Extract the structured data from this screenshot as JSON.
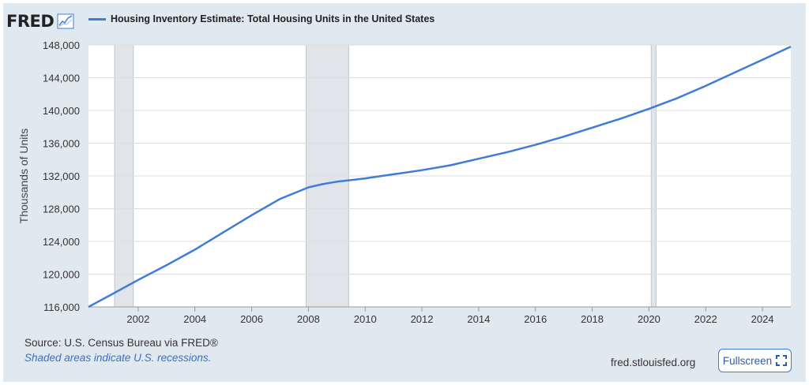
{
  "header": {
    "logo_text": "FRED",
    "logo_icon": "line-chart-icon",
    "fullscreen_icon": "fullscreen-icon"
  },
  "footer": {
    "source": "Source: U.S. Census Bureau via FRED®",
    "note": "Shaded areas indicate U.S. recessions.",
    "site": "fred.stlouisfed.org",
    "fullscreen_label": "Fullscreen"
  },
  "colors": {
    "series": "#3f7bd9",
    "recession": "#e1e5ea",
    "background": "#e1e9f0",
    "grid": "#dddddd"
  },
  "chart_data": {
    "type": "line",
    "title": "",
    "xlabel": "",
    "ylabel": "Thousands of Units",
    "xlim": [
      2000.25,
      2025.0
    ],
    "ylim": [
      116000,
      148000
    ],
    "x_ticks": [
      2002,
      2004,
      2006,
      2008,
      2010,
      2012,
      2014,
      2016,
      2018,
      2020,
      2022,
      2024
    ],
    "y_ticks": [
      116000,
      120000,
      124000,
      128000,
      132000,
      136000,
      140000,
      144000,
      148000
    ],
    "grid": "horizontal",
    "legend": "top-left",
    "recessions": [
      [
        2001.17,
        2001.83
      ],
      [
        2007.92,
        2009.42
      ],
      [
        2020.08,
        2020.25
      ]
    ],
    "series": [
      {
        "name": "Housing Inventory Estimate: Total Housing Units in the United States",
        "x": [
          2000.25,
          2001.0,
          2002.0,
          2003.0,
          2004.0,
          2005.0,
          2006.0,
          2007.0,
          2008.0,
          2008.5,
          2009.0,
          2009.5,
          2010.0,
          2011.0,
          2012.0,
          2013.0,
          2014.0,
          2015.0,
          2016.0,
          2017.0,
          2018.0,
          2019.0,
          2020.0,
          2021.0,
          2022.0,
          2023.0,
          2024.0,
          2025.0
        ],
        "values": [
          116000,
          117400,
          119300,
          121100,
          123000,
          125100,
          127200,
          129200,
          130600,
          131000,
          131300,
          131500,
          131700,
          132200,
          132700,
          133300,
          134100,
          134900,
          135800,
          136800,
          137900,
          139000,
          140200,
          141500,
          143000,
          144600,
          146200,
          147800
        ]
      }
    ]
  }
}
